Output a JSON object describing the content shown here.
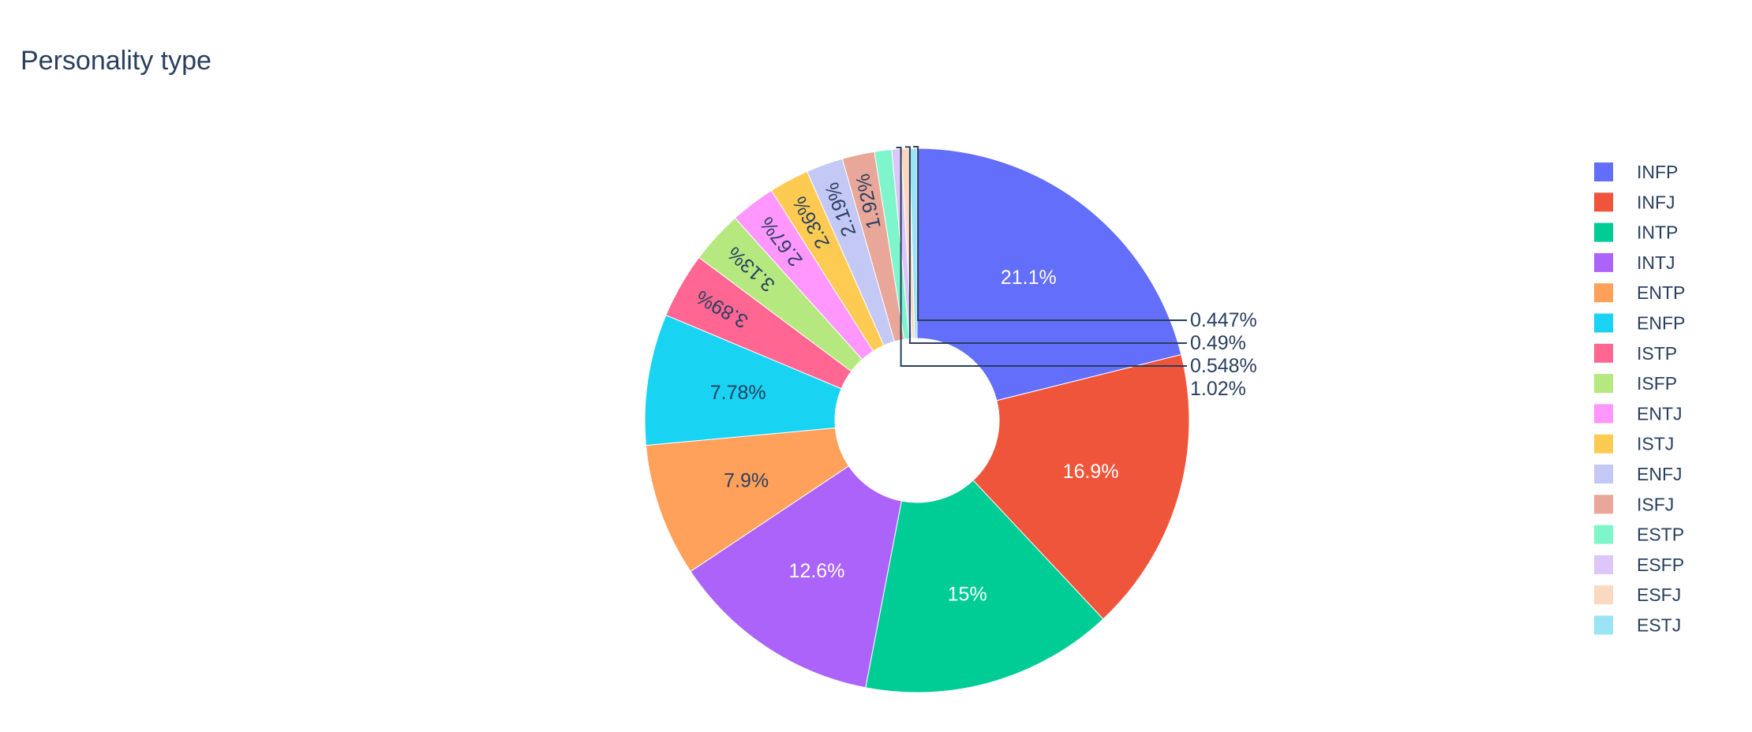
{
  "chart_data": {
    "type": "pie",
    "title": "Personality type",
    "hole": true,
    "legend_placement": "right",
    "categories": [
      "INFP",
      "INFJ",
      "INTP",
      "INTJ",
      "ENTP",
      "ENFP",
      "ISTP",
      "ISFP",
      "ENTJ",
      "ISTJ",
      "ENFJ",
      "ISFJ",
      "ESTP",
      "ESFP",
      "ESFJ",
      "ESTJ"
    ],
    "values": [
      21.1,
      16.9,
      15.0,
      12.6,
      7.9,
      7.78,
      3.89,
      3.13,
      2.67,
      2.36,
      2.19,
      1.92,
      1.02,
      0.548,
      0.49,
      0.447
    ],
    "labels": [
      "21.1%",
      "16.9%",
      "15%",
      "12.6%",
      "7.9%",
      "7.78%",
      "3.89%",
      "3.13%",
      "2.67%",
      "2.36%",
      "2.19%",
      "1.92%",
      "1.02%",
      "0.548%",
      "0.49%",
      "0.447%"
    ],
    "colors": [
      "#636efa",
      "#EF553B",
      "#00cc96",
      "#ab63fa",
      "#FFA15A",
      "#19d3f3",
      "#FF6692",
      "#B6E880",
      "#FF97FF",
      "#FECB52",
      "#c4c8f5",
      "#e9a79a",
      "#7ff5cc",
      "#dcc7f8",
      "#fad9c1",
      "#9ae4f5"
    ]
  }
}
